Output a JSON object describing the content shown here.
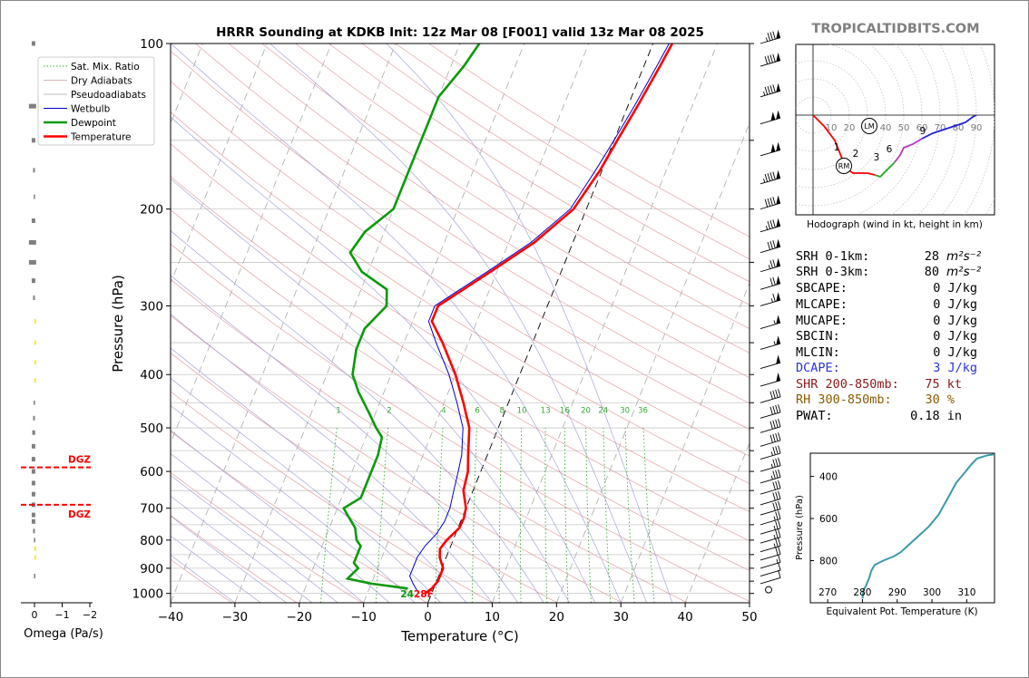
{
  "title": "HRRR Sounding at KDKB Init: 12z Mar 08 [F001] valid 13z Mar 08 2025",
  "brand": "TROPICALTIDBITS.COM",
  "chart_data": [
    {
      "type": "line",
      "name": "skew-t",
      "xlabel": "Temperature (°C)",
      "ylabel": "Pressure (hPa)",
      "xlim": [
        -40,
        50
      ],
      "ylim": [
        1040,
        100
      ],
      "log_y": true,
      "skew": true,
      "x_ticks": [
        "−40",
        "−30",
        "−20",
        "−10",
        "0",
        "10",
        "20",
        "30",
        "40",
        "50"
      ],
      "y_ticks": [
        "100",
        "200",
        "300",
        "400",
        "500",
        "600",
        "700",
        "800",
        "900",
        "1000"
      ],
      "legend": [
        "Sat. Mix. Ratio",
        "Dry Adiabats",
        "Pseudoadiabats",
        "Wetbulb",
        "Dewpoint",
        "Temperature"
      ],
      "legend_position": "top-left",
      "mixing_ratio_labels": [
        "1",
        "2",
        "4",
        "6",
        "8",
        "10",
        "13",
        "16",
        "20",
        "24",
        "30",
        "36"
      ],
      "surface_dewpoint_label": "24",
      "surface_temp_label": "28F",
      "temperature": [
        [
          1000,
          -1
        ],
        [
          980,
          -0.3
        ],
        [
          950,
          0.2
        ],
        [
          900,
          0.2
        ],
        [
          860,
          -1
        ],
        [
          830,
          -1.5
        ],
        [
          800,
          -1
        ],
        [
          760,
          0.2
        ],
        [
          730,
          0.3
        ],
        [
          700,
          0
        ],
        [
          650,
          -1.5
        ],
        [
          600,
          -2
        ],
        [
          560,
          -3
        ],
        [
          500,
          -4.5
        ],
        [
          450,
          -7
        ],
        [
          400,
          -10
        ],
        [
          350,
          -14
        ],
        [
          320,
          -17
        ],
        [
          300,
          -17
        ],
        [
          260,
          -11
        ],
        [
          230,
          -6
        ],
        [
          200,
          -2
        ],
        [
          170,
          -0.3
        ],
        [
          150,
          0.5
        ],
        [
          130,
          1.5
        ],
        [
          110,
          2.5
        ],
        [
          100,
          3
        ]
      ],
      "dewpoint": [
        [
          980,
          -4
        ],
        [
          970,
          -7
        ],
        [
          960,
          -10
        ],
        [
          940,
          -14
        ],
        [
          900,
          -13
        ],
        [
          880,
          -14
        ],
        [
          820,
          -14
        ],
        [
          800,
          -15
        ],
        [
          760,
          -16
        ],
        [
          720,
          -18
        ],
        [
          700,
          -19
        ],
        [
          670,
          -17
        ],
        [
          640,
          -17
        ],
        [
          600,
          -17
        ],
        [
          560,
          -17
        ],
        [
          520,
          -17.5
        ],
        [
          500,
          -19
        ],
        [
          470,
          -21
        ],
        [
          430,
          -24
        ],
        [
          400,
          -26
        ],
        [
          360,
          -27
        ],
        [
          330,
          -27
        ],
        [
          300,
          -25
        ],
        [
          280,
          -26
        ],
        [
          260,
          -31
        ],
        [
          240,
          -34
        ],
        [
          220,
          -33
        ],
        [
          200,
          -30
        ],
        [
          180,
          -30
        ],
        [
          160,
          -30
        ],
        [
          140,
          -30
        ],
        [
          125,
          -30
        ],
        [
          110,
          -28
        ],
        [
          100,
          -27
        ]
      ],
      "wetbulb": [
        [
          1000,
          -2
        ],
        [
          960,
          -3.5
        ],
        [
          930,
          -4.5
        ],
        [
          900,
          -4.5
        ],
        [
          860,
          -4.5
        ],
        [
          820,
          -4
        ],
        [
          780,
          -3
        ],
        [
          740,
          -2.5
        ],
        [
          700,
          -2.5
        ],
        [
          650,
          -3
        ],
        [
          600,
          -3.5
        ],
        [
          560,
          -4
        ],
        [
          500,
          -5.5
        ],
        [
          450,
          -8
        ],
        [
          400,
          -11
        ],
        [
          350,
          -15
        ],
        [
          320,
          -17.5
        ],
        [
          300,
          -17.5
        ],
        [
          260,
          -11.5
        ],
        [
          230,
          -6.5
        ],
        [
          200,
          -2.5
        ],
        [
          170,
          -1
        ],
        [
          150,
          0
        ],
        [
          130,
          1
        ],
        [
          110,
          2
        ],
        [
          100,
          2.5
        ]
      ],
      "wind_barbs": [
        {
          "p": 1000,
          "kt": 0
        },
        {
          "p": 960,
          "kt": 10
        },
        {
          "p": 930,
          "kt": 10
        },
        {
          "p": 900,
          "kt": 15
        },
        {
          "p": 870,
          "kt": 20
        },
        {
          "p": 840,
          "kt": 25
        },
        {
          "p": 810,
          "kt": 25
        },
        {
          "p": 780,
          "kt": 25
        },
        {
          "p": 750,
          "kt": 25
        },
        {
          "p": 720,
          "kt": 30
        },
        {
          "p": 690,
          "kt": 30
        },
        {
          "p": 660,
          "kt": 30
        },
        {
          "p": 630,
          "kt": 35
        },
        {
          "p": 600,
          "kt": 35
        },
        {
          "p": 570,
          "kt": 35
        },
        {
          "p": 540,
          "kt": 40
        },
        {
          "p": 510,
          "kt": 40
        },
        {
          "p": 480,
          "kt": 40
        },
        {
          "p": 450,
          "kt": 40
        },
        {
          "p": 420,
          "kt": 50
        },
        {
          "p": 390,
          "kt": 50
        },
        {
          "p": 360,
          "kt": 55
        },
        {
          "p": 330,
          "kt": 55
        },
        {
          "p": 300,
          "kt": 65
        },
        {
          "p": 280,
          "kt": 70
        },
        {
          "p": 260,
          "kt": 75
        },
        {
          "p": 240,
          "kt": 80
        },
        {
          "p": 220,
          "kt": 85
        },
        {
          "p": 200,
          "kt": 90
        },
        {
          "p": 180,
          "kt": 95
        },
        {
          "p": 160,
          "kt": 100
        },
        {
          "p": 140,
          "kt": 100
        },
        {
          "p": 125,
          "kt": 95
        },
        {
          "p": 110,
          "kt": 90
        },
        {
          "p": 100,
          "kt": 85
        }
      ]
    },
    {
      "type": "bar",
      "name": "omega",
      "xlabel": "Omega (Pa/s)",
      "x_ticks": [
        "0",
        "−1",
        "−2"
      ],
      "xlim": [
        0.1,
        -2.6
      ],
      "dgz_label": "DGZ",
      "dgz_bounds_hpa": [
        590,
        690
      ],
      "omega": [
        [
          100,
          0.1
        ],
        [
          130,
          0.2
        ],
        [
          150,
          0.1
        ],
        [
          170,
          0.05
        ],
        [
          190,
          0.03
        ],
        [
          210,
          0.1
        ],
        [
          230,
          0.2
        ],
        [
          250,
          0.2
        ],
        [
          270,
          0.1
        ],
        [
          290,
          0.05
        ],
        [
          320,
          -0.02
        ],
        [
          350,
          -0.02
        ],
        [
          380,
          -0.02
        ],
        [
          410,
          -0.02
        ],
        [
          450,
          0.03
        ],
        [
          480,
          0.05
        ],
        [
          510,
          0.08
        ],
        [
          540,
          0.1
        ],
        [
          570,
          0.1
        ],
        [
          600,
          0.1
        ],
        [
          630,
          0.1
        ],
        [
          660,
          0.1
        ],
        [
          690,
          0.1
        ],
        [
          720,
          0.1
        ],
        [
          740,
          0.1
        ],
        [
          770,
          0.05
        ],
        [
          800,
          0.02
        ],
        [
          830,
          -0.03
        ],
        [
          860,
          -0.02
        ],
        [
          930,
          0.02
        ]
      ]
    },
    {
      "type": "line",
      "name": "hodograph",
      "xlabel": "Hodograph (wind in kt, height in km)",
      "ring_labels": [
        "10",
        "20",
        "30",
        "40",
        "50",
        "60",
        "70",
        "80",
        "90"
      ],
      "height_labels": [
        "1",
        "2",
        "3",
        "6",
        "9"
      ],
      "lm_label": "LM",
      "rm_label": "RM",
      "points": [
        [
          0,
          0
        ],
        [
          6,
          -6
        ],
        [
          12,
          -14
        ],
        [
          16,
          -24
        ],
        [
          19,
          -30
        ],
        [
          22,
          -32
        ],
        [
          26,
          -32
        ],
        [
          30,
          -32
        ],
        [
          34,
          -33
        ],
        [
          37,
          -34
        ],
        [
          40,
          -31
        ],
        [
          45,
          -26
        ],
        [
          48,
          -22
        ],
        [
          50,
          -18
        ],
        [
          55,
          -16
        ],
        [
          60,
          -13
        ],
        [
          66,
          -10
        ],
        [
          72,
          -8
        ],
        [
          78,
          -6
        ],
        [
          84,
          -4
        ],
        [
          88,
          -1
        ],
        [
          90,
          0
        ]
      ]
    },
    {
      "type": "line",
      "name": "theta-e",
      "xlabel": "Equivalent Pot. Temperature (K)",
      "ylabel": "Pressure (hPa)",
      "x_ticks": [
        "270",
        "280",
        "290",
        "300",
        "310"
      ],
      "y_ticks": [
        "400",
        "600",
        "800"
      ],
      "xlim": [
        265,
        318
      ],
      "ylim": [
        1000,
        290
      ],
      "points": [
        [
          280,
          980
        ],
        [
          280.3,
          940
        ],
        [
          281,
          920
        ],
        [
          282,
          880
        ],
        [
          282.5,
          850
        ],
        [
          283.5,
          820
        ],
        [
          286,
          800
        ],
        [
          289,
          780
        ],
        [
          291,
          760
        ],
        [
          293,
          730
        ],
        [
          295,
          700
        ],
        [
          297,
          670
        ],
        [
          299,
          640
        ],
        [
          300.5,
          610
        ],
        [
          302,
          580
        ],
        [
          303,
          550
        ],
        [
          304,
          520
        ],
        [
          305,
          490
        ],
        [
          306,
          460
        ],
        [
          307,
          430
        ],
        [
          308.5,
          400
        ],
        [
          310,
          370
        ],
        [
          311.5,
          340
        ],
        [
          313,
          315
        ],
        [
          316,
          300
        ],
        [
          318,
          295
        ]
      ]
    }
  ],
  "indices": {
    "srh1": {
      "label": "SRH 0-1km:",
      "value": "28",
      "unit": "m²s⁻²"
    },
    "srh3": {
      "label": "SRH 0-3km:",
      "value": "80",
      "unit": "m²s⁻²"
    },
    "sbcape": {
      "label": "SBCAPE:",
      "value": "0 J/kg"
    },
    "mlcape": {
      "label": "MLCAPE:",
      "value": "0 J/kg"
    },
    "mucape": {
      "label": "MUCAPE:",
      "value": "0 J/kg"
    },
    "sbcin": {
      "label": "SBCIN:",
      "value": "0 J/kg"
    },
    "mlcin": {
      "label": "MLCIN:",
      "value": "0 J/kg"
    },
    "dcape": {
      "label": "DCAPE:",
      "value": "3 J/kg",
      "color": "#2a35d4"
    },
    "shr": {
      "label": "SHR 200-850mb:",
      "value": "75 kt",
      "color": "#8b1a1a"
    },
    "rh": {
      "label": "RH 300-850mb:",
      "value": "30 %",
      "color": "#8b5a00"
    },
    "pwat": {
      "label": "PWAT:",
      "value": "0.18 in"
    }
  },
  "colors": {
    "temperature": "#ff0000",
    "dewpoint": "#0a9a0a",
    "wetbulb": "#0000cc",
    "dry_adiabat": "#e3a0a0",
    "moist_adiabat": "#a6a6d6",
    "mixing_ratio": "#33aa33",
    "isotherm": "#aaaaaa",
    "theta_e": "#3a9aab",
    "brand": "#808080"
  }
}
